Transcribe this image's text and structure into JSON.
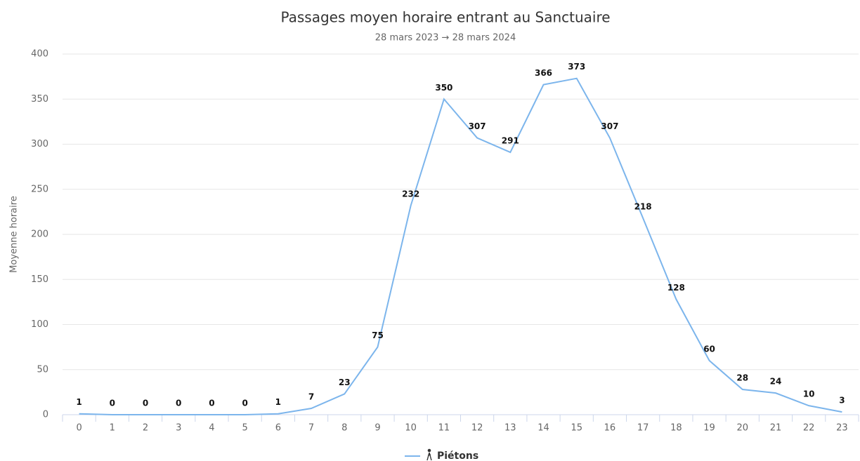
{
  "chart_data": {
    "type": "line",
    "title": "Passages moyen horaire entrant au Sanctuaire",
    "subtitle": "28 mars 2023 → 28 mars 2024",
    "y_label": "Moyenne horaire",
    "categories": [
      "0",
      "1",
      "2",
      "3",
      "4",
      "5",
      "6",
      "7",
      "8",
      "9",
      "10",
      "11",
      "12",
      "13",
      "14",
      "15",
      "16",
      "17",
      "18",
      "19",
      "20",
      "21",
      "22",
      "23"
    ],
    "series": [
      {
        "name": "Piétons",
        "color": "#7cb5ec",
        "values": [
          1,
          0,
          0,
          0,
          0,
          0,
          1,
          7,
          23,
          75,
          232,
          350,
          307,
          291,
          366,
          373,
          307,
          218,
          128,
          60,
          28,
          24,
          10,
          3
        ]
      }
    ],
    "ylim": [
      0,
      400
    ],
    "yticks": [
      0,
      50,
      100,
      150,
      200,
      250,
      300,
      350,
      400
    ],
    "grid": true
  }
}
